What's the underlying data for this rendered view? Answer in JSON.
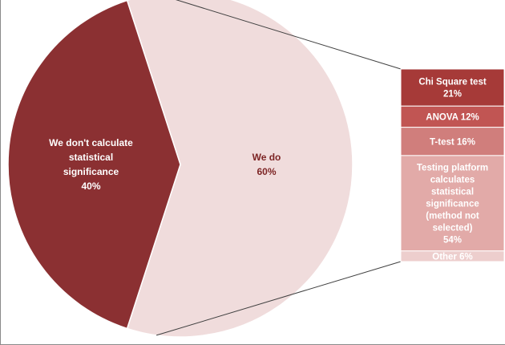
{
  "chart_data": {
    "type": "bar-of-pie",
    "pie": {
      "slices": [
        {
          "label_lines": [
            "We do",
            "60%"
          ],
          "value": 60,
          "color": "#f0dcdc",
          "text_color": "#7d2525"
        },
        {
          "label_lines": [
            "We don't calculate",
            "statistical",
            "significance",
            "40%"
          ],
          "value": 40,
          "color": "#8b3032",
          "text_color": "#ffffff"
        }
      ]
    },
    "bar": {
      "of_slice": "We do",
      "segments": [
        {
          "label_lines": [
            "Chi Square test",
            "21%"
          ],
          "value": 21,
          "color": "#a63a38"
        },
        {
          "label_lines": [
            "ANOVA 12%"
          ],
          "value": 12,
          "color": "#c15553"
        },
        {
          "label_lines": [
            "T-test 16%"
          ],
          "value": 16,
          "color": "#d07e7c"
        },
        {
          "label_lines": [
            "Testing platform",
            "calculates",
            "statistical",
            "significance",
            "(method not",
            "selected)",
            "54%"
          ],
          "value": 54,
          "color": "#e2aaa8"
        },
        {
          "label_lines": [
            "Other 6%"
          ],
          "value": 6,
          "color": "#edcecd"
        }
      ]
    },
    "colors": {
      "connector": "#404040",
      "border": "#8a8a8a",
      "separator": "#ffffff"
    }
  }
}
